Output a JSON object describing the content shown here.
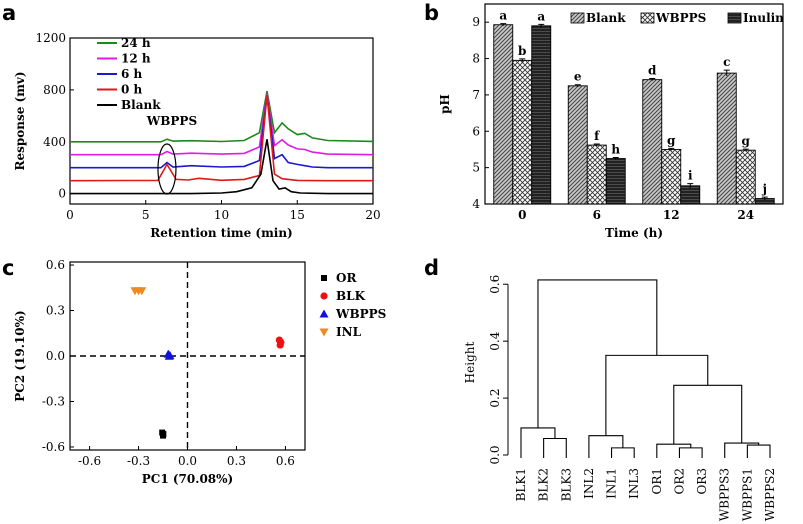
{
  "figure": {
    "panels": [
      "a",
      "b",
      "c",
      "d"
    ]
  },
  "chart_data": [
    {
      "id": "a",
      "type": "line",
      "xlabel": "Retention time (min)",
      "ylabel": "Response (mv)",
      "xlim": [
        0,
        20
      ],
      "ylim": [
        -80,
        1200
      ],
      "xticks": [
        0,
        5,
        10,
        15,
        20
      ],
      "yticks": [
        0,
        400,
        800,
        1200
      ],
      "annotation": "WBPPS",
      "legend_position": "top-left",
      "series": [
        {
          "name": "24 h",
          "color": "#1a8a1a",
          "x": [
            0,
            6.0,
            6.4,
            6.8,
            8,
            10,
            11.5,
            12.5,
            13.0,
            13.5,
            14.0,
            14.4,
            15.0,
            15.5,
            16.0,
            17.0,
            20
          ],
          "y": [
            400,
            400,
            420,
            405,
            408,
            402,
            410,
            470,
            790,
            470,
            545,
            500,
            455,
            465,
            430,
            410,
            403
          ]
        },
        {
          "name": "12 h",
          "color": "#e11be1",
          "x": [
            0,
            6.0,
            6.4,
            6.8,
            8,
            10,
            11.5,
            12.5,
            13.0,
            13.5,
            14.0,
            14.4,
            15.0,
            15.5,
            16.0,
            17.0,
            20
          ],
          "y": [
            300,
            300,
            325,
            305,
            312,
            305,
            310,
            360,
            770,
            370,
            415,
            375,
            345,
            340,
            320,
            305,
            300
          ]
        },
        {
          "name": "6 h",
          "color": "#1a1acc",
          "x": [
            0,
            6.0,
            6.4,
            6.8,
            8,
            10,
            11.5,
            12.5,
            13.0,
            13.5,
            14.0,
            14.4,
            15.0,
            15.5,
            16.0,
            17.0,
            20
          ],
          "y": [
            200,
            200,
            240,
            205,
            215,
            205,
            210,
            255,
            760,
            270,
            300,
            240,
            225,
            215,
            205,
            200,
            200
          ]
        },
        {
          "name": "0 h",
          "color": "#dd1a1a",
          "x": [
            0,
            5.8,
            6.4,
            7.0,
            7.8,
            8.5,
            10,
            11.5,
            12.5,
            13.0,
            13.5,
            14.0,
            15.0,
            17.0,
            20
          ],
          "y": [
            100,
            102,
            225,
            110,
            105,
            118,
            103,
            110,
            140,
            760,
            150,
            115,
            102,
            100,
            100
          ]
        },
        {
          "name": "Blank",
          "color": "#000000",
          "x": [
            0,
            8,
            10,
            11.0,
            12.0,
            12.6,
            13.0,
            13.4,
            13.8,
            14.2,
            14.6,
            15.2,
            17.0,
            20
          ],
          "y": [
            0,
            0,
            5,
            15,
            45,
            150,
            420,
            100,
            35,
            45,
            15,
            5,
            0,
            0
          ]
        }
      ]
    },
    {
      "id": "b",
      "type": "bar",
      "xlabel": "Time (h)",
      "ylabel": "pH",
      "ylim": [
        4,
        9.5
      ],
      "yticks": [
        4,
        5,
        6,
        7,
        8,
        9
      ],
      "categories": [
        "0",
        "6",
        "12",
        "24"
      ],
      "legend_position": "top",
      "series": [
        {
          "name": "Blank",
          "values": [
            8.93,
            7.25,
            7.42,
            7.6
          ],
          "errors": [
            0.03,
            0.03,
            0.03,
            0.08
          ],
          "letters": [
            "a",
            "e",
            "d",
            "c"
          ],
          "fill": "#9a9a9a"
        },
        {
          "name": "WBPPS",
          "values": [
            7.95,
            5.62,
            5.5,
            5.48
          ],
          "errors": [
            0.04,
            0.03,
            0.03,
            0.03
          ],
          "letters": [
            "b",
            "f",
            "g",
            "g"
          ],
          "fill": "#e8e8e8"
        },
        {
          "name": "Inulin",
          "values": [
            8.9,
            5.25,
            4.5,
            4.15
          ],
          "errors": [
            0.04,
            0.03,
            0.06,
            0.04
          ],
          "letters": [
            "a",
            "h",
            "i",
            "j"
          ],
          "fill": "#2b2b2b"
        }
      ]
    },
    {
      "id": "c",
      "type": "scatter",
      "xlabel": "PC1 (70.08%)",
      "ylabel": "PC2 (19.10%)",
      "xlim": [
        -0.72,
        0.72
      ],
      "ylim": [
        -0.62,
        0.62
      ],
      "xticks": [
        -0.6,
        -0.3,
        0.0,
        0.3,
        0.6
      ],
      "yticks": [
        -0.6,
        -0.3,
        0.0,
        0.3,
        0.6
      ],
      "xticklabels": [
        "-0.6",
        "-0.3",
        "0.0",
        "0.3",
        "0.6"
      ],
      "yticklabels": [
        "-0.6",
        "-0.3",
        "0.0",
        "0.3",
        "0.6"
      ],
      "legend_position": "right",
      "series": [
        {
          "name": "OR",
          "color": "#000000",
          "marker": "square",
          "x": [
            -0.155,
            -0.148,
            -0.15
          ],
          "y": [
            -0.505,
            -0.515,
            -0.525
          ]
        },
        {
          "name": "BLK",
          "color": "#ee1111",
          "marker": "circle",
          "x": [
            0.563,
            0.572,
            0.568
          ],
          "y": [
            0.105,
            0.09,
            0.072
          ]
        },
        {
          "name": "WBPPS",
          "color": "#1111dd",
          "marker": "triangle-up",
          "x": [
            -0.118,
            -0.108,
            -0.112
          ],
          "y": [
            0.012,
            0.004,
            -0.002
          ]
        },
        {
          "name": "INL",
          "color": "#ee8a22",
          "marker": "triangle-down",
          "x": [
            -0.322,
            -0.3,
            -0.28
          ],
          "y": [
            0.43,
            0.43,
            0.43
          ]
        }
      ]
    },
    {
      "id": "d",
      "type": "dendrogram",
      "ylabel": "Height",
      "ylim": [
        0,
        0.65
      ],
      "yticks": [
        0.0,
        0.2,
        0.4,
        0.6
      ],
      "yticklabels": [
        "0.0",
        "0.2",
        "0.4",
        "0.6"
      ],
      "leaves": [
        "BLK1",
        "BLK2",
        "BLK3",
        "INL2",
        "INL1",
        "INL3",
        "OR1",
        "OR2",
        "OR3",
        "WBPPS3",
        "WBPPS1",
        "WBPPS2"
      ],
      "merges": [
        {
          "a": 1,
          "b": 2,
          "h": 0.058
        },
        {
          "a": 0,
          "b": "m0",
          "h": 0.095
        },
        {
          "a": 4,
          "b": 5,
          "h": 0.025
        },
        {
          "a": 3,
          "b": "m2",
          "h": 0.068
        },
        {
          "a": 7,
          "b": 8,
          "h": 0.025
        },
        {
          "a": 6,
          "b": "m4",
          "h": 0.038
        },
        {
          "a": 10,
          "b": 11,
          "h": 0.035
        },
        {
          "a": 9,
          "b": "m6",
          "h": 0.042
        },
        {
          "a": "m5",
          "b": "m7",
          "h": 0.245
        },
        {
          "a": "m3",
          "b": "m8",
          "h": 0.35
        },
        {
          "a": "m1",
          "b": "m9",
          "h": 0.615
        }
      ]
    }
  ]
}
